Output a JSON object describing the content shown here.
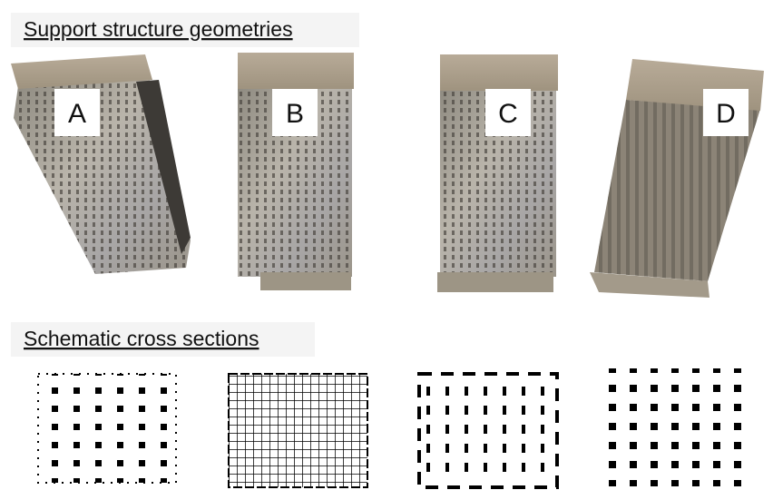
{
  "sections": [
    {
      "title": "Support structure geometries"
    },
    {
      "title": "Schematic cross sections"
    }
  ],
  "samples": [
    {
      "label": "A"
    },
    {
      "label": "B"
    },
    {
      "label": "C"
    },
    {
      "label": "D"
    }
  ]
}
